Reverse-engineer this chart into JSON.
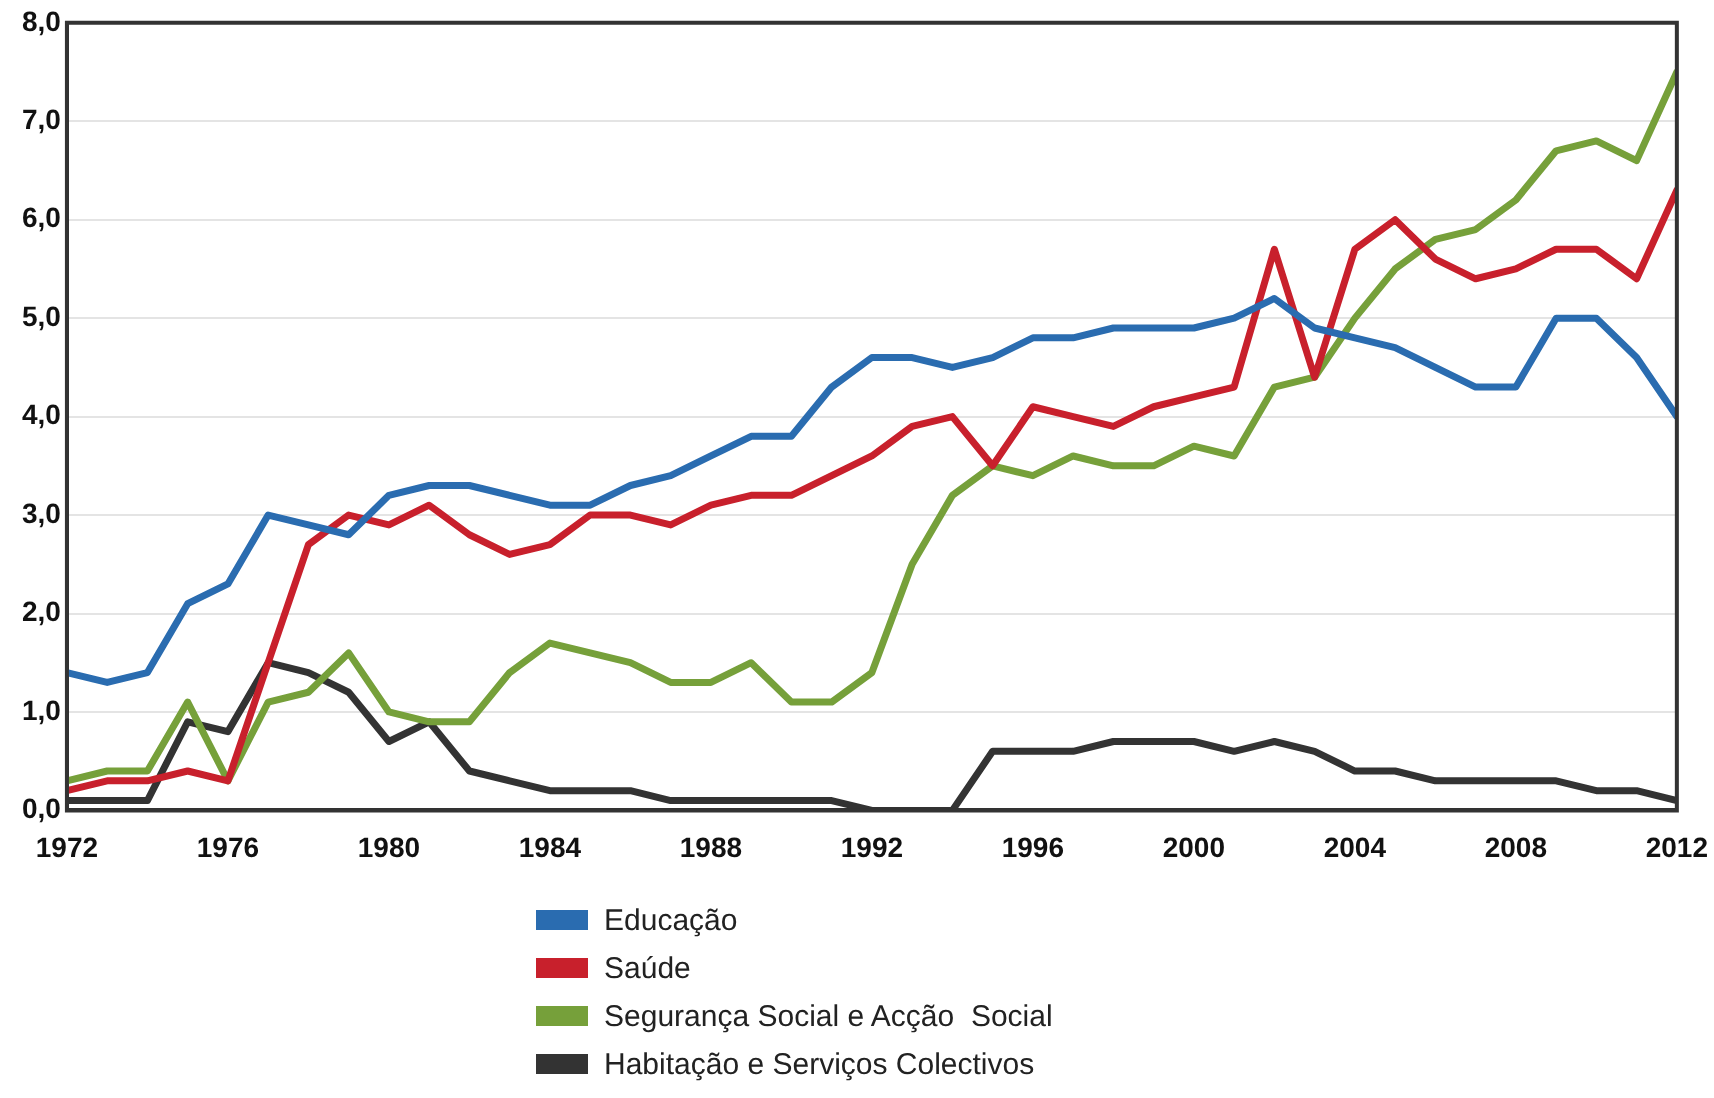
{
  "chart_data": {
    "type": "line",
    "x": [
      1972,
      1973,
      1974,
      1975,
      1976,
      1977,
      1978,
      1979,
      1980,
      1981,
      1982,
      1983,
      1984,
      1985,
      1986,
      1987,
      1988,
      1989,
      1990,
      1991,
      1992,
      1993,
      1994,
      1995,
      1996,
      1997,
      1998,
      1999,
      2000,
      2001,
      2002,
      2003,
      2004,
      2005,
      2006,
      2007,
      2008,
      2009,
      2010,
      2011,
      2012
    ],
    "series": [
      {
        "name": "Educação",
        "color": "#2a6cb0",
        "values": [
          1.4,
          1.3,
          1.4,
          2.1,
          2.3,
          3.0,
          2.9,
          2.8,
          3.2,
          3.3,
          3.3,
          3.2,
          3.1,
          3.1,
          3.3,
          3.4,
          3.6,
          3.8,
          3.8,
          4.3,
          4.6,
          4.6,
          4.5,
          4.6,
          4.8,
          4.8,
          4.9,
          4.9,
          4.9,
          5.0,
          5.2,
          4.9,
          4.8,
          4.7,
          4.5,
          4.3,
          4.3,
          5.0,
          5.0,
          4.6,
          4.0
        ]
      },
      {
        "name": "Saúde",
        "color": "#c8202c",
        "values": [
          0.2,
          0.3,
          0.3,
          0.4,
          0.3,
          1.5,
          2.7,
          3.0,
          2.9,
          3.1,
          2.8,
          2.6,
          2.7,
          3.0,
          3.0,
          2.9,
          3.1,
          3.2,
          3.2,
          3.4,
          3.6,
          3.9,
          4.0,
          3.5,
          4.1,
          4.0,
          3.9,
          4.1,
          4.2,
          4.3,
          5.7,
          4.4,
          5.7,
          6.0,
          5.6,
          5.4,
          5.5,
          5.7,
          5.7,
          5.4,
          6.3
        ]
      },
      {
        "name": "Segurança Social e Acção  Social",
        "color": "#76a03a",
        "values": [
          0.3,
          0.4,
          0.4,
          1.1,
          0.3,
          1.1,
          1.2,
          1.6,
          1.0,
          0.9,
          0.9,
          1.4,
          1.7,
          1.6,
          1.5,
          1.3,
          1.3,
          1.5,
          1.1,
          1.1,
          1.4,
          2.5,
          3.2,
          3.5,
          3.4,
          3.6,
          3.5,
          3.5,
          3.7,
          3.6,
          4.3,
          4.4,
          5.0,
          5.5,
          5.8,
          5.9,
          6.2,
          6.7,
          6.8,
          6.6,
          7.5
        ]
      },
      {
        "name": "Habitação e Serviços Colectivos",
        "color": "#333333",
        "values": [
          0.1,
          0.1,
          0.1,
          0.9,
          0.8,
          1.5,
          1.4,
          1.2,
          0.7,
          0.9,
          0.4,
          0.3,
          0.2,
          0.2,
          0.2,
          0.1,
          0.1,
          0.1,
          0.1,
          0.1,
          0.0,
          0.0,
          0.0,
          0.6,
          0.6,
          0.6,
          0.7,
          0.7,
          0.7,
          0.6,
          0.7,
          0.6,
          0.4,
          0.4,
          0.3,
          0.3,
          0.3,
          0.3,
          0.2,
          0.2,
          0.1
        ]
      }
    ],
    "xlim": [
      1972,
      2012
    ],
    "xticks": [
      1972,
      1976,
      1980,
      1984,
      1988,
      1992,
      1996,
      2000,
      2004,
      2008,
      2012
    ],
    "ylim": [
      0,
      8
    ],
    "yticks": [
      {
        "value": 0,
        "label": "0,0"
      },
      {
        "value": 1,
        "label": "1,0"
      },
      {
        "value": 2,
        "label": "2,0"
      },
      {
        "value": 3,
        "label": "3,0"
      },
      {
        "value": 4,
        "label": "4,0"
      },
      {
        "value": 5,
        "label": "5,0"
      },
      {
        "value": 6,
        "label": "6,0"
      },
      {
        "value": 7,
        "label": "7,0"
      },
      {
        "value": 8,
        "label": "8,0"
      }
    ],
    "grid": "y",
    "legend": "bottom",
    "marker": "none",
    "line_style": "solid"
  }
}
